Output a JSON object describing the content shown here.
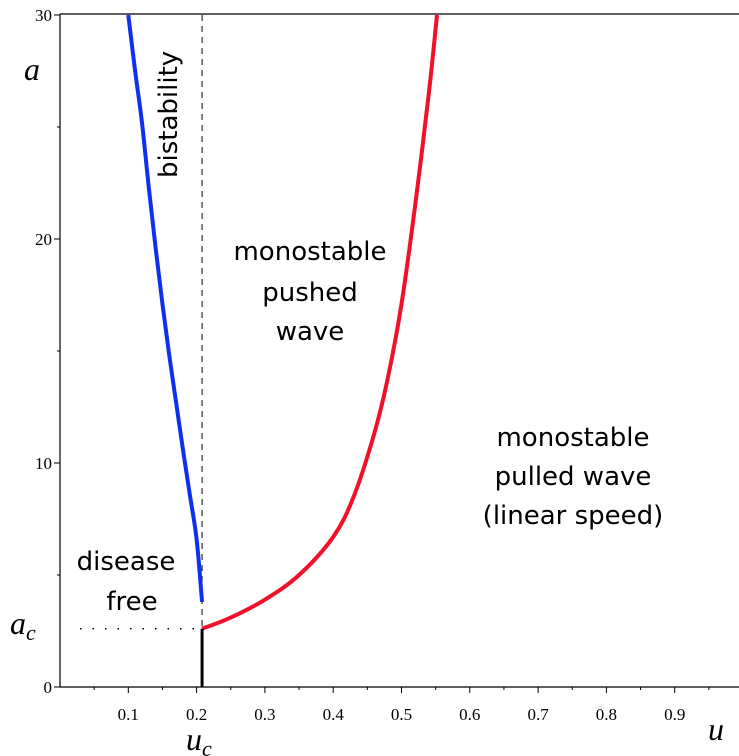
{
  "chart_data": {
    "type": "line",
    "title": "",
    "xlabel": "u",
    "ylabel": "a",
    "xlim": [
      0,
      1.0
    ],
    "ylim": [
      0,
      30
    ],
    "x_ticks": [
      0.1,
      0.2,
      0.3,
      0.4,
      0.5,
      0.6,
      0.7,
      0.8,
      0.9
    ],
    "x_tick_labels": [
      "0.1",
      "0.2",
      "0.3",
      "0.4",
      "0.5",
      "0.6",
      "0.7",
      "0.8",
      "0.9"
    ],
    "y_ticks": [
      0,
      10,
      20,
      30
    ],
    "y_tick_labels": [
      "0",
      "10",
      "20",
      "30"
    ],
    "grid": false,
    "colors": {
      "blue_curve": "#1030f0",
      "red_curve": "#f0102a",
      "black_line": "#000000"
    },
    "series": [
      {
        "color": "#1030f0",
        "x": [
          0.1,
          0.11,
          0.12,
          0.13,
          0.14,
          0.15,
          0.16,
          0.17,
          0.18,
          0.19,
          0.2,
          0.208
        ],
        "y": [
          30.0,
          27.5,
          25.2,
          22.3,
          19.6,
          17.1,
          14.8,
          12.7,
          10.6,
          8.6,
          6.6,
          3.8
        ]
      },
      {
        "color": "#f0102a",
        "x": [
          0.208,
          0.25,
          0.3,
          0.35,
          0.4,
          0.43,
          0.46,
          0.48,
          0.5,
          0.52,
          0.54,
          0.552
        ],
        "y": [
          2.6,
          3.1,
          3.9,
          5.0,
          6.7,
          8.5,
          11.3,
          13.8,
          17.1,
          21.5,
          26.5,
          30.0
        ]
      },
      {
        "color": "#000000",
        "x": [
          0.208,
          0.208
        ],
        "y": [
          0,
          2.6
        ]
      }
    ],
    "reference_lines": {
      "vertical_dashed_x": 0.208,
      "horizontal_dotted_y": 2.6
    },
    "annotations": {
      "uc": "u_c",
      "ac": "a_c",
      "bistability": "bistability",
      "pushed": [
        "monostable",
        "pushed",
        "wave"
      ],
      "pulled": [
        "monostable",
        "pulled wave",
        "(linear speed)"
      ],
      "disease": [
        "disease",
        "free"
      ]
    }
  }
}
